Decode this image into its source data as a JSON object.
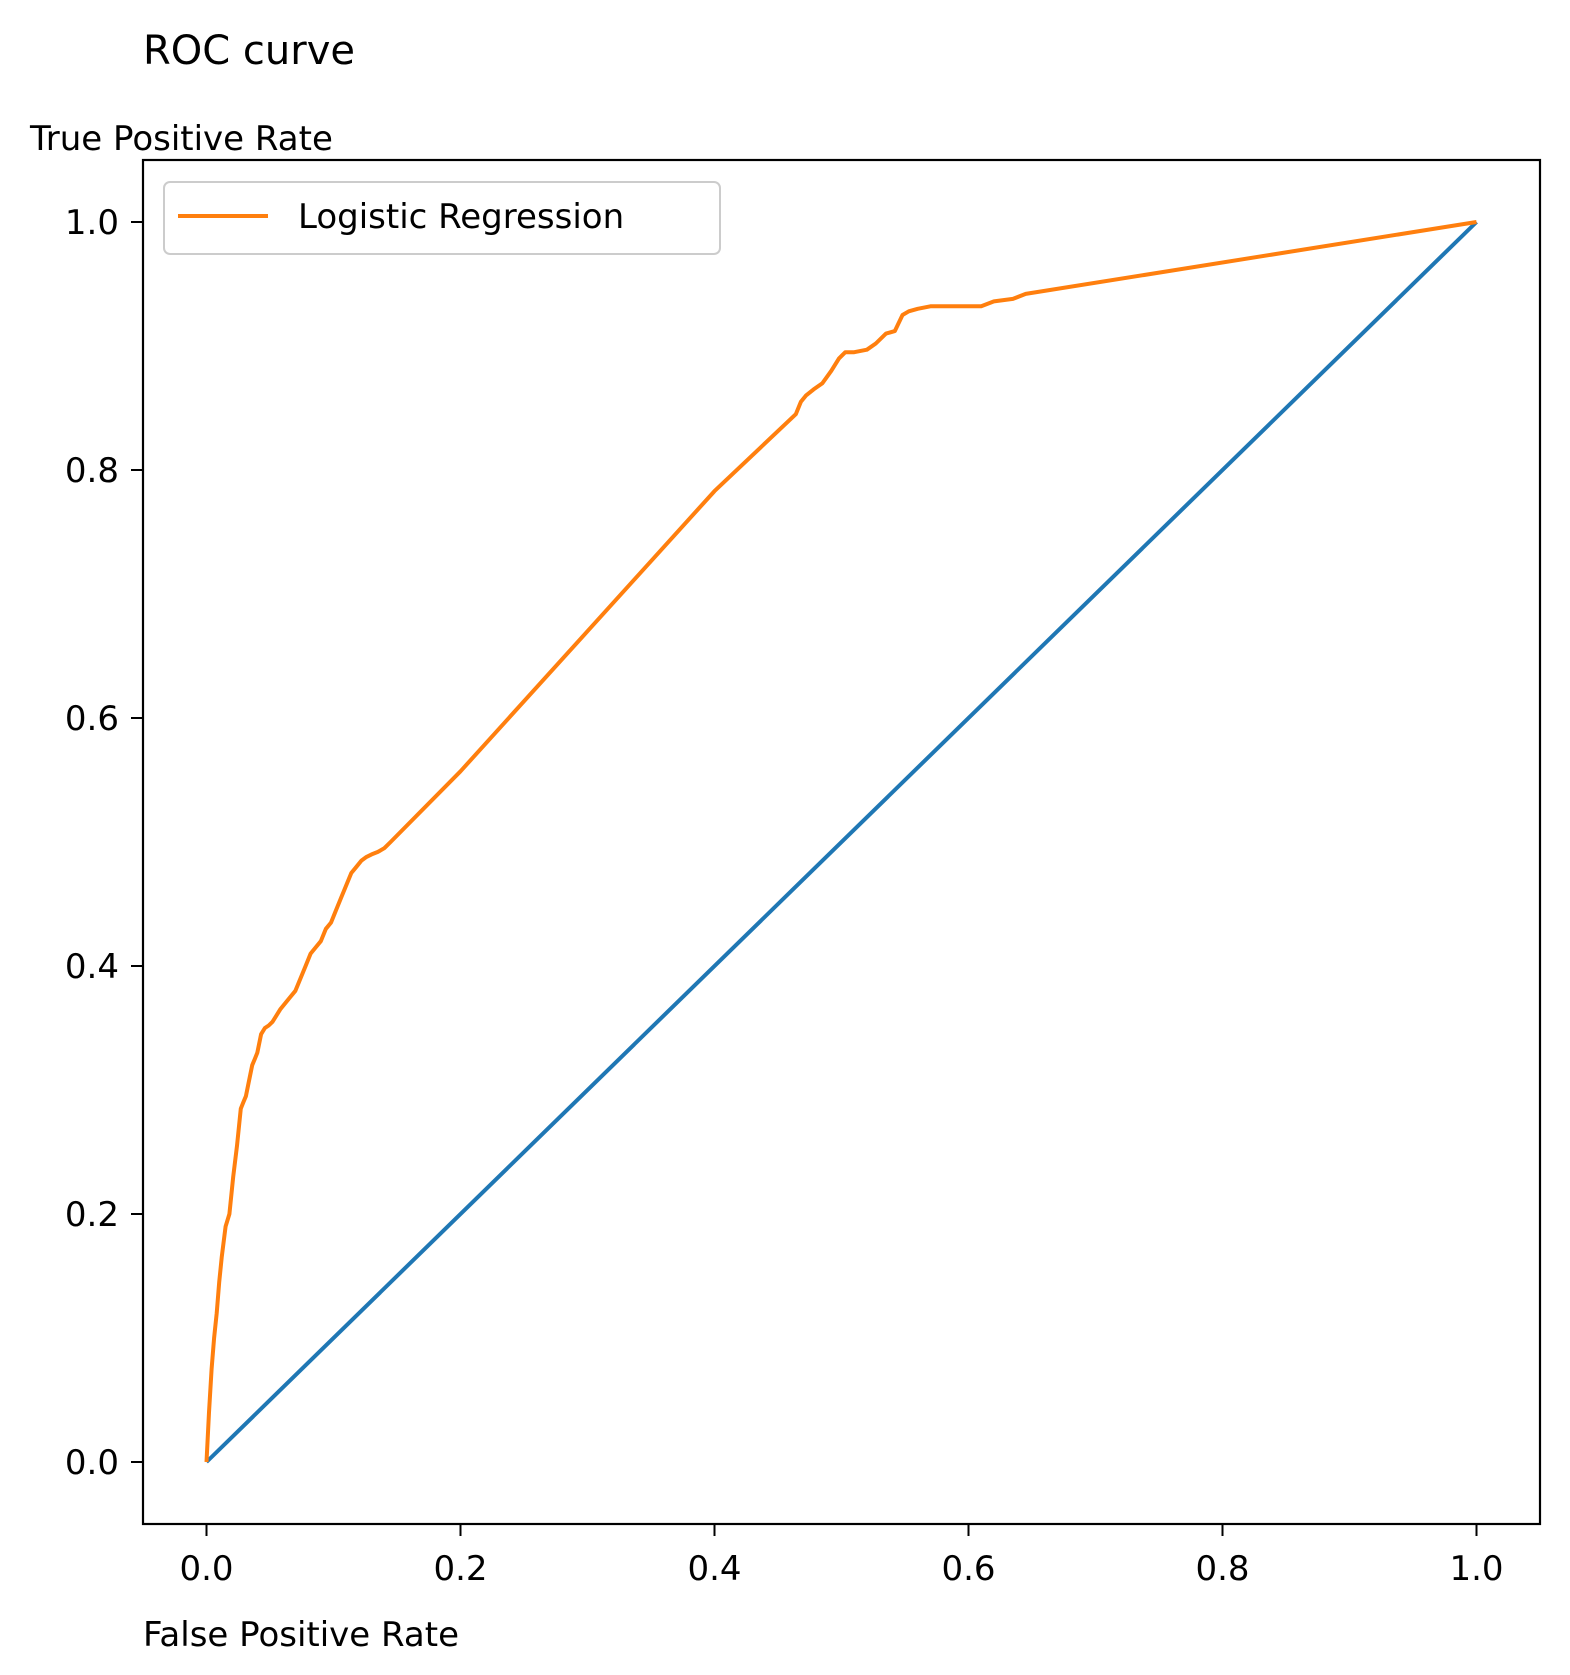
{
  "chart_data": {
    "type": "line",
    "title": "ROC curve",
    "xlabel": "False Positive Rate",
    "ylabel": "True Positive Rate",
    "xlim": [
      -0.05,
      1.05
    ],
    "ylim": [
      -0.05,
      1.05
    ],
    "xticks": [
      0.0,
      0.2,
      0.4,
      0.6,
      0.8,
      1.0
    ],
    "xtick_labels": [
      "0.0",
      "0.2",
      "0.4",
      "0.6",
      "0.8",
      "1.0"
    ],
    "yticks": [
      0.0,
      0.2,
      0.4,
      0.6,
      0.8,
      1.0
    ],
    "ytick_labels": [
      "0.0",
      "0.2",
      "0.4",
      "0.6",
      "0.8",
      "1.0"
    ],
    "grid": false,
    "legend_position": "upper-left",
    "series": [
      {
        "key": "diagonal",
        "color": "#1f77b4",
        "in_legend": false,
        "x": [
          0.0,
          1.0
        ],
        "y": [
          0.0,
          1.0
        ]
      },
      {
        "key": "logistic",
        "name": "Logistic Regression",
        "color": "#ff7f0e",
        "in_legend": true,
        "x": [
          0.0,
          0.002,
          0.004,
          0.006,
          0.008,
          0.01,
          0.012,
          0.015,
          0.018,
          0.021,
          0.024,
          0.027,
          0.029,
          0.031,
          0.033,
          0.036,
          0.038,
          0.04,
          0.043,
          0.046,
          0.049,
          0.052,
          0.055,
          0.058,
          0.062,
          0.066,
          0.07,
          0.074,
          0.078,
          0.082,
          0.086,
          0.09,
          0.094,
          0.098,
          0.102,
          0.106,
          0.11,
          0.114,
          0.118,
          0.122,
          0.126,
          0.13,
          0.135,
          0.14,
          0.145,
          0.2,
          0.3,
          0.4,
          0.464,
          0.468,
          0.472,
          0.478,
          0.485,
          0.492,
          0.498,
          0.503,
          0.51,
          0.52,
          0.527,
          0.535,
          0.542,
          0.548,
          0.553,
          0.56,
          0.57,
          0.59,
          0.61,
          0.62,
          0.635,
          0.645,
          1.0
        ],
        "y": [
          0.0,
          0.04,
          0.075,
          0.1,
          0.12,
          0.145,
          0.165,
          0.19,
          0.2,
          0.23,
          0.255,
          0.285,
          0.29,
          0.295,
          0.305,
          0.32,
          0.325,
          0.33,
          0.345,
          0.35,
          0.352,
          0.355,
          0.36,
          0.365,
          0.37,
          0.375,
          0.38,
          0.39,
          0.4,
          0.41,
          0.415,
          0.42,
          0.43,
          0.435,
          0.445,
          0.455,
          0.465,
          0.475,
          0.48,
          0.485,
          0.488,
          0.49,
          0.492,
          0.495,
          0.5,
          0.557,
          0.67,
          0.783,
          0.845,
          0.855,
          0.86,
          0.865,
          0.87,
          0.88,
          0.89,
          0.895,
          0.895,
          0.897,
          0.902,
          0.91,
          0.912,
          0.925,
          0.928,
          0.93,
          0.932,
          0.932,
          0.932,
          0.936,
          0.938,
          0.942,
          1.0
        ]
      }
    ]
  }
}
